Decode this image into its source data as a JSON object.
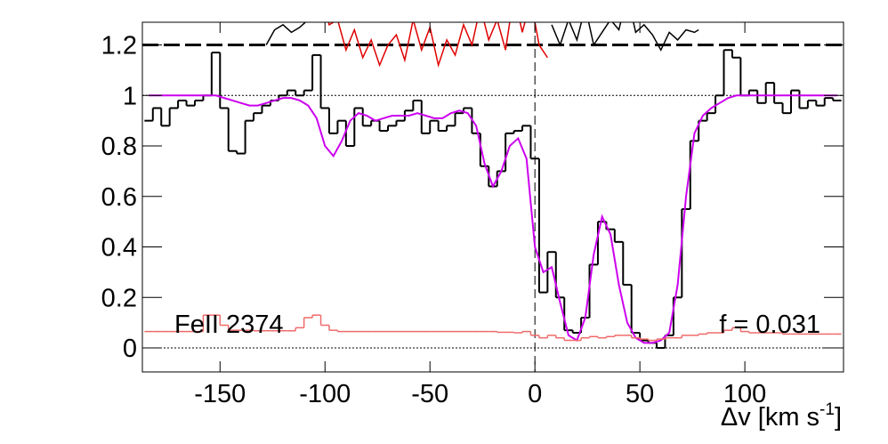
{
  "chart_data": {
    "type": "line",
    "xlim": [
      -187,
      147
    ],
    "ylim": [
      -0.095,
      1.29
    ],
    "xticks": [
      -150,
      -100,
      -50,
      0,
      50,
      100
    ],
    "yticks": [
      0,
      0.2,
      0.4,
      0.6,
      0.8,
      1,
      1.2
    ],
    "xlabel": {
      "text": "Δv [km s",
      "sup": "-1",
      "end": "]"
    },
    "annotations": [
      "FeII 2374",
      "f = 0.031"
    ],
    "x": [
      -184,
      -180,
      -176,
      -172,
      -168,
      -164,
      -160,
      -156,
      -152,
      -148,
      -144,
      -140,
      -136,
      -132,
      -128,
      -124,
      -120,
      -116,
      -112,
      -108,
      -104,
      -100,
      -96,
      -92,
      -88,
      -84,
      -80,
      -76,
      -72,
      -68,
      -64,
      -60,
      -56,
      -52,
      -48,
      -44,
      -40,
      -36,
      -32,
      -28,
      -24,
      -20,
      -16,
      -12,
      -8,
      -4,
      0,
      4,
      8,
      12,
      16,
      20,
      24,
      28,
      32,
      36,
      40,
      44,
      48,
      52,
      56,
      60,
      64,
      68,
      72,
      76,
      80,
      84,
      88,
      92,
      96,
      100,
      104,
      108,
      112,
      116,
      120,
      124,
      128,
      132,
      136,
      140,
      144
    ],
    "series": [
      {
        "style": "step",
        "color": "#000000",
        "width": 2,
        "values": [
          0.9,
          0.95,
          0.88,
          0.95,
          0.98,
          0.96,
          0.98,
          1.0,
          1.17,
          0.95,
          0.78,
          0.77,
          0.9,
          0.93,
          0.96,
          0.98,
          1.0,
          1.02,
          1.0,
          1.02,
          1.16,
          0.95,
          0.85,
          0.9,
          0.8,
          0.95,
          0.88,
          0.9,
          0.86,
          0.88,
          0.9,
          0.94,
          0.98,
          0.85,
          0.9,
          0.86,
          0.88,
          0.93,
          0.95,
          0.85,
          0.72,
          0.64,
          0.7,
          0.85,
          0.86,
          0.88,
          0.75,
          0.22,
          0.38,
          0.2,
          0.07,
          0.06,
          0.12,
          0.33,
          0.5,
          0.47,
          0.42,
          0.25,
          0.06,
          0.03,
          0.02,
          0.0,
          0.05,
          0.2,
          0.55,
          0.82,
          0.9,
          0.93,
          1.0,
          1.18,
          1.15,
          1.0,
          1.02,
          0.97,
          1.05,
          0.97,
          0.93,
          1.02,
          0.95,
          0.98,
          0.96,
          0.99,
          0.98
        ]
      },
      {
        "style": "line",
        "color": "#cc00ee",
        "width": 2,
        "values": [
          1.0,
          1.0,
          1.0,
          1.0,
          1.0,
          1.0,
          1.0,
          1.0,
          1.0,
          0.99,
          0.98,
          0.97,
          0.96,
          0.96,
          0.97,
          0.98,
          0.99,
          0.99,
          0.98,
          0.96,
          0.91,
          0.8,
          0.76,
          0.82,
          0.9,
          0.93,
          0.92,
          0.9,
          0.91,
          0.92,
          0.92,
          0.92,
          0.93,
          0.92,
          0.91,
          0.91,
          0.93,
          0.94,
          0.93,
          0.88,
          0.73,
          0.64,
          0.7,
          0.8,
          0.83,
          0.75,
          0.4,
          0.3,
          0.32,
          0.18,
          0.05,
          0.03,
          0.12,
          0.37,
          0.52,
          0.45,
          0.25,
          0.1,
          0.04,
          0.02,
          0.02,
          0.03,
          0.06,
          0.25,
          0.6,
          0.85,
          0.92,
          0.95,
          0.97,
          0.99,
          1.0,
          1.0,
          1.0,
          1.0,
          1.0,
          1.0,
          1.0,
          1.0,
          1.0,
          1.0,
          1.0,
          1.0,
          1.0
        ]
      },
      {
        "style": "step",
        "color": "#f06a6a",
        "width": 1.5,
        "values": [
          0.065,
          0.065,
          0.065,
          0.065,
          0.065,
          0.065,
          0.065,
          0.13,
          0.13,
          0.09,
          0.07,
          0.07,
          0.07,
          0.068,
          0.068,
          0.068,
          0.068,
          0.068,
          0.08,
          0.12,
          0.13,
          0.09,
          0.07,
          0.065,
          0.065,
          0.065,
          0.065,
          0.065,
          0.065,
          0.065,
          0.065,
          0.065,
          0.065,
          0.065,
          0.065,
          0.065,
          0.065,
          0.065,
          0.065,
          0.065,
          0.065,
          0.065,
          0.062,
          0.062,
          0.06,
          0.065,
          0.05,
          0.04,
          0.05,
          0.04,
          0.03,
          0.03,
          0.04,
          0.045,
          0.04,
          0.045,
          0.05,
          0.05,
          0.04,
          0.035,
          0.03,
          0.035,
          0.04,
          0.04,
          0.05,
          0.05,
          0.055,
          0.06,
          0.06,
          0.07,
          0.08,
          0.065,
          0.06,
          0.06,
          0.06,
          0.06,
          0.055,
          0.055,
          0.055,
          0.055,
          0.055,
          0.055,
          0.055
        ]
      },
      {
        "style": "line",
        "color": "#000000",
        "width": 1.5,
        "x": [
          -128,
          -124,
          -120,
          -116,
          -112,
          -108,
          -104,
          -50,
          8,
          12,
          16,
          20,
          24,
          28,
          32,
          36,
          40,
          44,
          48,
          52,
          56,
          60,
          64,
          68,
          72,
          76,
          78
        ],
        "values": [
          1.2,
          1.26,
          1.28,
          1.25,
          1.27,
          1.3,
          1.4,
          null,
          1.28,
          1.2,
          1.3,
          1.22,
          1.35,
          1.2,
          1.25,
          1.3,
          1.26,
          1.4,
          1.25,
          1.28,
          1.24,
          1.18,
          1.25,
          1.22,
          1.26,
          1.25,
          1.26
        ]
      },
      {
        "style": "line",
        "color": "#e00000",
        "width": 1.5,
        "x": [
          -102,
          -98,
          -94,
          -90,
          -86,
          -82,
          -78,
          -74,
          -70,
          -66,
          -62,
          -58,
          -54,
          -50,
          -46,
          -42,
          -38,
          -34,
          -30,
          -26,
          -22,
          -18,
          -14,
          -10,
          -6,
          -2,
          2,
          6
        ],
        "values": [
          1.4,
          1.28,
          1.3,
          1.18,
          1.26,
          1.15,
          1.22,
          1.12,
          1.2,
          1.24,
          1.14,
          1.3,
          1.18,
          1.27,
          1.12,
          1.22,
          1.16,
          1.28,
          1.2,
          1.35,
          1.22,
          1.3,
          1.18,
          1.4,
          1.25,
          1.38,
          1.2,
          1.15
        ]
      }
    ],
    "hlines": [
      {
        "value": 1.2,
        "color": "#000000",
        "dash": "18 6",
        "width": 3
      },
      {
        "value": 1,
        "color": "#000000",
        "dash": "2 2",
        "width": 1
      },
      {
        "value": 0,
        "color": "#000000",
        "dash": "2 2",
        "width": 1
      }
    ],
    "vlines": [
      {
        "value": 0,
        "color": "#000000",
        "dash": "10 5",
        "width": 1
      }
    ]
  }
}
